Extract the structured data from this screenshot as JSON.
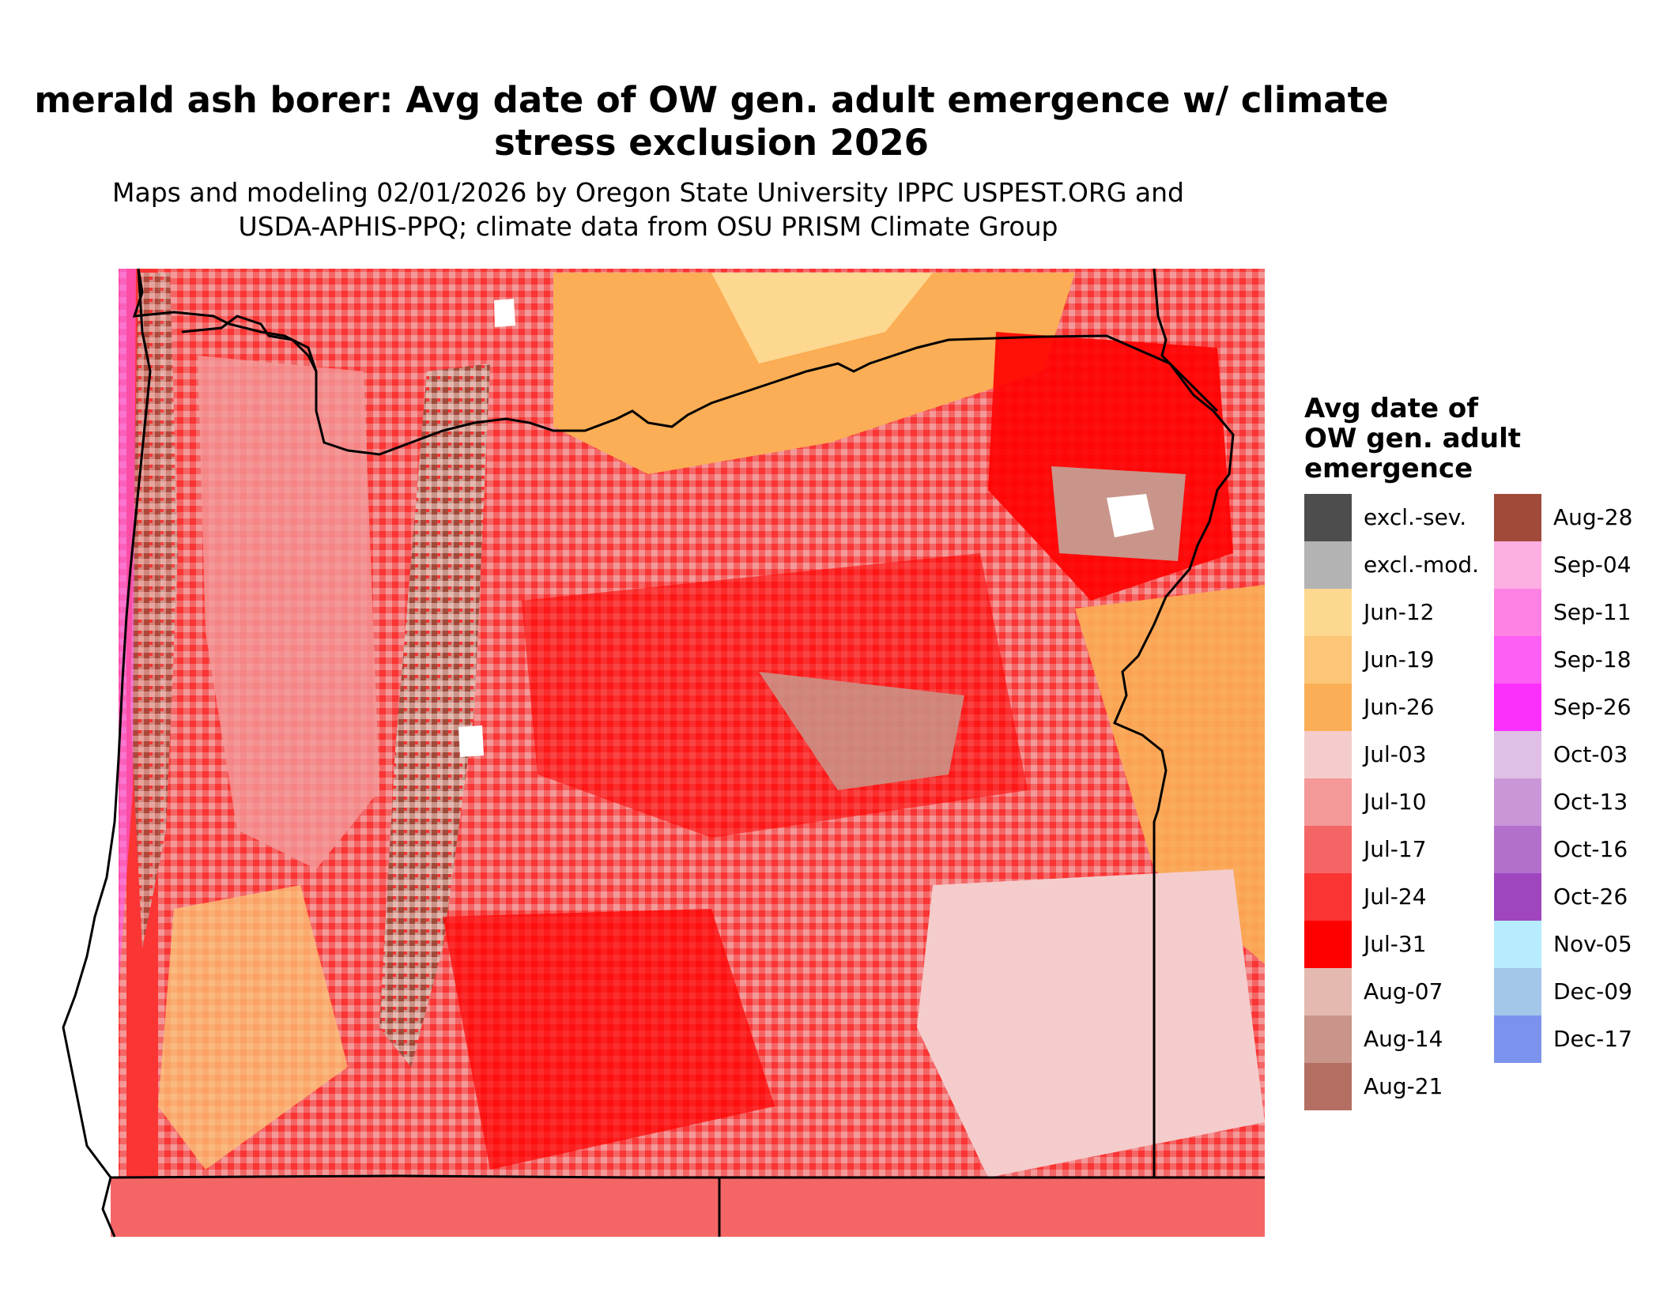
{
  "title_line1": "merald ash borer: Avg date of OW gen. adult emergence w/ climate",
  "title_line2": "stress exclusion 2026",
  "subtitle_line1": "Maps and modeling 02/01/2026 by Oregon State University IPPC USPEST.ORG and",
  "subtitle_line2": "USDA-APHIS-PPQ; climate data from OSU PRISM Climate Group",
  "legend": {
    "title_line1": "Avg date of",
    "title_line2": "OW gen. adult",
    "title_line3": "emergence",
    "items": [
      {
        "label": "excl.-sev.",
        "color": "#4d4d4d"
      },
      {
        "label": "excl.-mod.",
        "color": "#b3b3b3"
      },
      {
        "label": "Jun-12",
        "color": "#fdd890"
      },
      {
        "label": "Jun-19",
        "color": "#fcc577"
      },
      {
        "label": "Jun-26",
        "color": "#fbae55"
      },
      {
        "label": "Jul-03",
        "color": "#f4cccc"
      },
      {
        "label": "Jul-10",
        "color": "#f49898"
      },
      {
        "label": "Jul-17",
        "color": "#f46666"
      },
      {
        "label": "Jul-24",
        "color": "#fb3434"
      },
      {
        "label": "Jul-31",
        "color": "#ff0000"
      },
      {
        "label": "Aug-07",
        "color": "#e4b9b0"
      },
      {
        "label": "Aug-14",
        "color": "#c9958a"
      },
      {
        "label": "Aug-21",
        "color": "#b46e62"
      },
      {
        "label": "Aug-28",
        "color": "#a14a3a"
      },
      {
        "label": "Sep-04",
        "color": "#fdaee3"
      },
      {
        "label": "Sep-11",
        "color": "#fd82e3"
      },
      {
        "label": "Sep-18",
        "color": "#fd5ef3"
      },
      {
        "label": "Sep-26",
        "color": "#fd2ffd"
      },
      {
        "label": "Oct-03",
        "color": "#dfbfe6"
      },
      {
        "label": "Oct-13",
        "color": "#c996d7"
      },
      {
        "label": "Oct-16",
        "color": "#b270cc"
      },
      {
        "label": "Oct-26",
        "color": "#9f46bf"
      },
      {
        "label": "Nov-05",
        "color": "#b6ecfd"
      },
      {
        "label": "Dec-09",
        "color": "#a4c6e9"
      },
      {
        "label": "Dec-17",
        "color": "#7c93ee"
      }
    ]
  }
}
